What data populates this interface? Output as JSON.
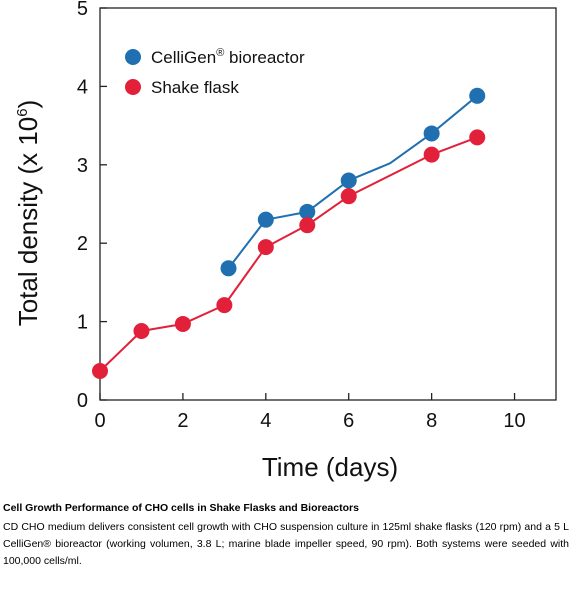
{
  "chart_data": {
    "type": "line",
    "xlabel": "Time (days)",
    "ylabel": "Total density (x 10",
    "ylabel_sup": "6",
    "ylabel_close": ")",
    "xlim": [
      0,
      11
    ],
    "ylim": [
      0,
      5
    ],
    "x_ticks": [
      0,
      2,
      4,
      6,
      8,
      10
    ],
    "y_ticks": [
      0,
      1,
      2,
      3,
      4,
      5
    ],
    "grid": false,
    "legend": "top-left",
    "series": [
      {
        "name": "CelliGen",
        "name_sup": "®",
        "name_suffix": " bioreactor",
        "color": "#1f6fb1",
        "points": [
          [
            3.1,
            1.68
          ],
          [
            4.0,
            2.3
          ],
          [
            5.0,
            2.4
          ],
          [
            6.0,
            2.8
          ],
          [
            7.0,
            3.02
          ],
          [
            8.0,
            3.4
          ],
          [
            9.1,
            3.88
          ]
        ],
        "markers": [
          true,
          true,
          true,
          true,
          false,
          true,
          true
        ]
      },
      {
        "name": "Shake flask",
        "color": "#e2203a",
        "points": [
          [
            0.0,
            0.37
          ],
          [
            1.0,
            0.88
          ],
          [
            2.0,
            0.97
          ],
          [
            3.0,
            1.21
          ],
          [
            4.0,
            1.95
          ],
          [
            5.0,
            2.23
          ],
          [
            6.0,
            2.6
          ],
          [
            8.0,
            3.13
          ],
          [
            9.1,
            3.35
          ]
        ],
        "markers": [
          true,
          true,
          true,
          true,
          true,
          true,
          true,
          true,
          true
        ]
      }
    ]
  },
  "caption": {
    "title": "Cell Growth Performance of CHO cells in Shake Flasks and Bioreactors",
    "body": "CD CHO medium delivers consistent cell growth with CHO suspension culture in 125ml shake flasks (120 rpm) and a 5 L CelliGen® bioreactor (working volumen, 3.8 L; marine blade impeller speed, 90 rpm). Both systems were seeded with 100,000 cells/ml."
  }
}
